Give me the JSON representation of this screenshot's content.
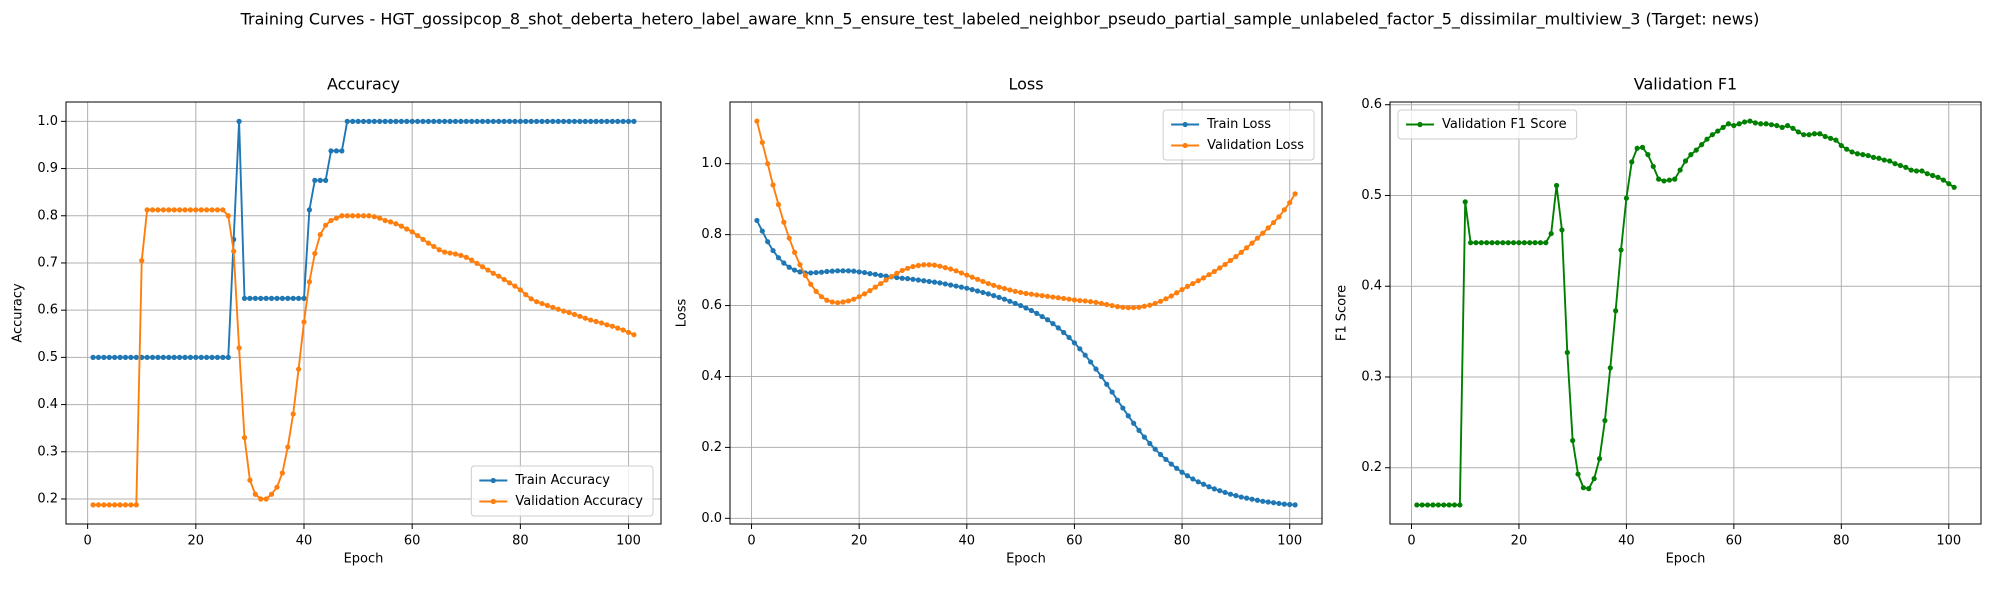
{
  "title": "Training Curves - HGT_gossipcop_8_shot_deberta_hetero_label_aware_knn_5_ensure_test_labeled_neighbor_pseudo_partial_sample_unlabeled_factor_5_dissimilar_multiview_3 (Target: news)",
  "chart_data": [
    {
      "type": "line",
      "title": "Accuracy",
      "xlabel": "Epoch",
      "ylabel": "Accuracy",
      "grid": true,
      "legend": "lower right",
      "xlim": [
        -4,
        106
      ],
      "xticks": [
        0,
        20,
        40,
        60,
        80,
        100
      ],
      "ylim": [
        0.147,
        1.041
      ],
      "yticks": [
        0.2,
        0.3,
        0.4,
        0.5,
        0.6,
        0.7,
        0.8,
        0.9,
        {
          "value": 1.0,
          "label": "1.0"
        }
      ],
      "x": [
        1,
        2,
        3,
        4,
        5,
        6,
        7,
        8,
        9,
        10,
        11,
        12,
        13,
        14,
        15,
        16,
        17,
        18,
        19,
        20,
        21,
        22,
        23,
        24,
        25,
        26,
        27,
        28,
        29,
        30,
        31,
        32,
        33,
        34,
        35,
        36,
        37,
        38,
        39,
        40,
        41,
        42,
        43,
        44,
        45,
        46,
        47,
        48,
        49,
        50,
        51,
        52,
        53,
        54,
        55,
        56,
        57,
        58,
        59,
        60,
        61,
        62,
        63,
        64,
        65,
        66,
        67,
        68,
        69,
        70,
        71,
        72,
        73,
        74,
        75,
        76,
        77,
        78,
        79,
        80,
        81,
        82,
        83,
        84,
        85,
        86,
        87,
        88,
        89,
        90,
        91,
        92,
        93,
        94,
        95,
        96,
        97,
        98,
        99,
        100,
        101
      ],
      "series": [
        {
          "name": "Train Accuracy",
          "color": "#1f77b4",
          "values": [
            0.5,
            0.5,
            0.5,
            0.5,
            0.5,
            0.5,
            0.5,
            0.5,
            0.5,
            0.5,
            0.5,
            0.5,
            0.5,
            0.5,
            0.5,
            0.5,
            0.5,
            0.5,
            0.5,
            0.5,
            0.5,
            0.5,
            0.5,
            0.5,
            0.5,
            0.5,
            0.75,
            1.0,
            0.625,
            0.625,
            0.625,
            0.625,
            0.625,
            0.625,
            0.625,
            0.625,
            0.625,
            0.625,
            0.625,
            0.625,
            0.8125,
            0.875,
            0.875,
            0.875,
            0.9375,
            0.9375,
            0.9375,
            1.0,
            1.0,
            1.0,
            1.0,
            1.0,
            1.0,
            1.0,
            1.0,
            1.0,
            1.0,
            1.0,
            1.0,
            1.0,
            1.0,
            1.0,
            1.0,
            1.0,
            1.0,
            1.0,
            1.0,
            1.0,
            1.0,
            1.0,
            1.0,
            1.0,
            1.0,
            1.0,
            1.0,
            1.0,
            1.0,
            1.0,
            1.0,
            1.0,
            1.0,
            1.0,
            1.0,
            1.0,
            1.0,
            1.0,
            1.0,
            1.0,
            1.0,
            1.0,
            1.0,
            1.0,
            1.0,
            1.0,
            1.0,
            1.0,
            1.0,
            1.0,
            1.0,
            1.0,
            1.0
          ]
        },
        {
          "name": "Validation Accuracy",
          "color": "#ff7f0e",
          "values": [
            0.1875,
            0.1875,
            0.1875,
            0.1875,
            0.1875,
            0.1875,
            0.1875,
            0.1875,
            0.1875,
            0.705,
            0.8125,
            0.8125,
            0.8125,
            0.8125,
            0.8125,
            0.8125,
            0.8125,
            0.8125,
            0.8125,
            0.8125,
            0.8125,
            0.8125,
            0.8125,
            0.8125,
            0.8125,
            0.8,
            0.725,
            0.52,
            0.33,
            0.24,
            0.21,
            0.2,
            0.2,
            0.21,
            0.225,
            0.255,
            0.31,
            0.38,
            0.475,
            0.575,
            0.66,
            0.72,
            0.76,
            0.78,
            0.79,
            0.795,
            0.8,
            0.8,
            0.8,
            0.8,
            0.8,
            0.8,
            0.798,
            0.795,
            0.79,
            0.787,
            0.783,
            0.778,
            0.772,
            0.766,
            0.758,
            0.75,
            0.742,
            0.735,
            0.728,
            0.723,
            0.721,
            0.719,
            0.716,
            0.712,
            0.706,
            0.699,
            0.692,
            0.685,
            0.678,
            0.672,
            0.665,
            0.658,
            0.651,
            0.643,
            0.633,
            0.624,
            0.618,
            0.614,
            0.61,
            0.606,
            0.602,
            0.598,
            0.595,
            0.591,
            0.587,
            0.583,
            0.579,
            0.576,
            0.573,
            0.569,
            0.566,
            0.562,
            0.558,
            0.553,
            0.548
          ]
        }
      ]
    },
    {
      "type": "line",
      "title": "Loss",
      "xlabel": "Epoch",
      "ylabel": "Loss",
      "grid": true,
      "legend": "upper right",
      "xlim": [
        -4,
        106
      ],
      "xticks": [
        0,
        20,
        40,
        60,
        80,
        100
      ],
      "ylim": [
        -0.016,
        1.174
      ],
      "yticks": [
        {
          "value": 0.0,
          "label": "0.0"
        },
        0.2,
        0.4,
        0.6,
        0.8,
        {
          "value": 1.0,
          "label": "1.0"
        }
      ],
      "x": [
        1,
        2,
        3,
        4,
        5,
        6,
        7,
        8,
        9,
        10,
        11,
        12,
        13,
        14,
        15,
        16,
        17,
        18,
        19,
        20,
        21,
        22,
        23,
        24,
        25,
        26,
        27,
        28,
        29,
        30,
        31,
        32,
        33,
        34,
        35,
        36,
        37,
        38,
        39,
        40,
        41,
        42,
        43,
        44,
        45,
        46,
        47,
        48,
        49,
        50,
        51,
        52,
        53,
        54,
        55,
        56,
        57,
        58,
        59,
        60,
        61,
        62,
        63,
        64,
        65,
        66,
        67,
        68,
        69,
        70,
        71,
        72,
        73,
        74,
        75,
        76,
        77,
        78,
        79,
        80,
        81,
        82,
        83,
        84,
        85,
        86,
        87,
        88,
        89,
        90,
        91,
        92,
        93,
        94,
        95,
        96,
        97,
        98,
        99,
        100,
        101
      ],
      "series": [
        {
          "name": "Train Loss",
          "color": "#1f77b4",
          "values": [
            0.84,
            0.81,
            0.78,
            0.755,
            0.735,
            0.72,
            0.708,
            0.7,
            0.695,
            0.692,
            0.692,
            0.693,
            0.694,
            0.696,
            0.697,
            0.698,
            0.698,
            0.698,
            0.697,
            0.695,
            0.693,
            0.69,
            0.688,
            0.685,
            0.683,
            0.681,
            0.679,
            0.677,
            0.676,
            0.674,
            0.672,
            0.67,
            0.668,
            0.666,
            0.664,
            0.661,
            0.658,
            0.655,
            0.652,
            0.649,
            0.645,
            0.641,
            0.637,
            0.633,
            0.628,
            0.623,
            0.618,
            0.612,
            0.606,
            0.6,
            0.593,
            0.586,
            0.578,
            0.569,
            0.56,
            0.549,
            0.537,
            0.524,
            0.51,
            0.495,
            0.478,
            0.46,
            0.441,
            0.421,
            0.4,
            0.378,
            0.356,
            0.333,
            0.311,
            0.289,
            0.268,
            0.248,
            0.229,
            0.211,
            0.195,
            0.18,
            0.166,
            0.153,
            0.141,
            0.13,
            0.12,
            0.111,
            0.103,
            0.096,
            0.089,
            0.083,
            0.078,
            0.073,
            0.068,
            0.064,
            0.06,
            0.057,
            0.054,
            0.051,
            0.048,
            0.046,
            0.044,
            0.042,
            0.04,
            0.039,
            0.038
          ]
        },
        {
          "name": "Validation Loss",
          "color": "#ff7f0e",
          "values": [
            1.12,
            1.06,
            1.0,
            0.94,
            0.885,
            0.835,
            0.79,
            0.75,
            0.715,
            0.685,
            0.66,
            0.64,
            0.625,
            0.615,
            0.61,
            0.608,
            0.61,
            0.613,
            0.618,
            0.625,
            0.633,
            0.642,
            0.652,
            0.662,
            0.672,
            0.682,
            0.691,
            0.699,
            0.705,
            0.71,
            0.713,
            0.715,
            0.715,
            0.714,
            0.711,
            0.707,
            0.703,
            0.698,
            0.692,
            0.686,
            0.68,
            0.674,
            0.668,
            0.662,
            0.657,
            0.652,
            0.648,
            0.644,
            0.64,
            0.637,
            0.634,
            0.632,
            0.63,
            0.628,
            0.626,
            0.624,
            0.622,
            0.62,
            0.618,
            0.616,
            0.614,
            0.613,
            0.611,
            0.609,
            0.606,
            0.603,
            0.6,
            0.597,
            0.595,
            0.594,
            0.594,
            0.595,
            0.598,
            0.601,
            0.606,
            0.612,
            0.619,
            0.627,
            0.636,
            0.645,
            0.654,
            0.662,
            0.67,
            0.678,
            0.687,
            0.696,
            0.706,
            0.716,
            0.727,
            0.738,
            0.75,
            0.763,
            0.776,
            0.79,
            0.804,
            0.819,
            0.834,
            0.85,
            0.87,
            0.89,
            0.915
          ]
        }
      ]
    },
    {
      "type": "line",
      "title": "Validation F1",
      "xlabel": "Epoch",
      "ylabel": "F1 Score",
      "grid": true,
      "legend": "upper left",
      "xlim": [
        -4,
        106
      ],
      "xticks": [
        0,
        20,
        40,
        60,
        80,
        100
      ],
      "ylim": [
        0.138,
        0.603
      ],
      "yticks": [
        0.2,
        0.3,
        0.4,
        0.5,
        0.6
      ],
      "x": [
        1,
        2,
        3,
        4,
        5,
        6,
        7,
        8,
        9,
        10,
        11,
        12,
        13,
        14,
        15,
        16,
        17,
        18,
        19,
        20,
        21,
        22,
        23,
        24,
        25,
        26,
        27,
        28,
        29,
        30,
        31,
        32,
        33,
        34,
        35,
        36,
        37,
        38,
        39,
        40,
        41,
        42,
        43,
        44,
        45,
        46,
        47,
        48,
        49,
        50,
        51,
        52,
        53,
        54,
        55,
        56,
        57,
        58,
        59,
        60,
        61,
        62,
        63,
        64,
        65,
        66,
        67,
        68,
        69,
        70,
        71,
        72,
        73,
        74,
        75,
        76,
        77,
        78,
        79,
        80,
        81,
        82,
        83,
        84,
        85,
        86,
        87,
        88,
        89,
        90,
        91,
        92,
        93,
        94,
        95,
        96,
        97,
        98,
        99,
        100,
        101
      ],
      "series": [
        {
          "name": "Validation F1 Score",
          "color": "#008000",
          "values": [
            0.159,
            0.159,
            0.159,
            0.159,
            0.159,
            0.159,
            0.159,
            0.159,
            0.159,
            0.493,
            0.448,
            0.448,
            0.448,
            0.448,
            0.448,
            0.448,
            0.448,
            0.448,
            0.448,
            0.448,
            0.448,
            0.448,
            0.448,
            0.448,
            0.448,
            0.458,
            0.511,
            0.462,
            0.327,
            0.23,
            0.193,
            0.178,
            0.177,
            0.188,
            0.21,
            0.252,
            0.31,
            0.373,
            0.44,
            0.497,
            0.537,
            0.552,
            0.553,
            0.545,
            0.532,
            0.518,
            0.516,
            0.517,
            0.518,
            0.528,
            0.538,
            0.545,
            0.55,
            0.556,
            0.562,
            0.567,
            0.571,
            0.575,
            0.579,
            0.577,
            0.579,
            0.581,
            0.582,
            0.58,
            0.579,
            0.579,
            0.578,
            0.577,
            0.575,
            0.577,
            0.574,
            0.57,
            0.567,
            0.567,
            0.568,
            0.568,
            0.565,
            0.563,
            0.561,
            0.555,
            0.551,
            0.548,
            0.546,
            0.545,
            0.544,
            0.542,
            0.541,
            0.539,
            0.538,
            0.535,
            0.533,
            0.531,
            0.528,
            0.527,
            0.527,
            0.524,
            0.522,
            0.52,
            0.517,
            0.513,
            0.509
          ]
        }
      ]
    }
  ]
}
